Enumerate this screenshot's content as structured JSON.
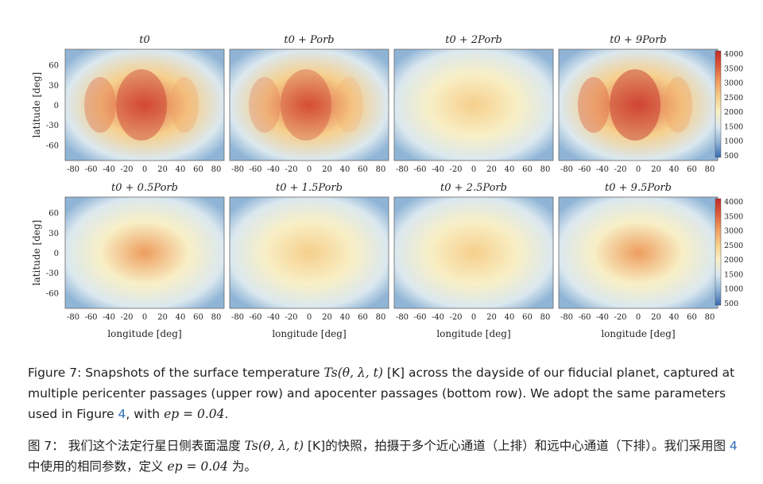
{
  "figure": {
    "panel_titles_top": [
      "t0",
      "t0 + Porb",
      "t0 + 2Porb",
      "t0 + 9Porb"
    ],
    "panel_titles_bottom": [
      "t0 + 0.5Porb",
      "t0 + 1.5Porb",
      "t0 + 2.5Porb",
      "t0 + 9.5Porb"
    ],
    "ylabel": "latitude [deg]",
    "xlabel": "longitude [deg]",
    "xticks": [
      "-80",
      "-60",
      "-40",
      "-20",
      "0",
      "20",
      "40",
      "60",
      "80"
    ],
    "yticks": [
      "60",
      "30",
      "0",
      "-30",
      "-60"
    ],
    "colorbar_ticks": [
      "4000",
      "3500",
      "3000",
      "2500",
      "2000",
      "1500",
      "1000",
      "500"
    ],
    "colormap": [
      "#3a6bb0",
      "#8fb4d6",
      "#dbe8ef",
      "#f8efc6",
      "#f6cf8c",
      "#ee9d5e",
      "#dd5b3a",
      "#c22a28"
    ],
    "panels": [
      {
        "row": 0,
        "col": 0,
        "intensity": 0.9
      },
      {
        "row": 0,
        "col": 1,
        "intensity": 0.8
      },
      {
        "row": 0,
        "col": 2,
        "intensity": 0.45
      },
      {
        "row": 0,
        "col": 3,
        "intensity": 0.95
      },
      {
        "row": 1,
        "col": 0,
        "intensity": 0.5
      },
      {
        "row": 1,
        "col": 1,
        "intensity": 0.45
      },
      {
        "row": 1,
        "col": 2,
        "intensity": 0.3
      },
      {
        "row": 1,
        "col": 3,
        "intensity": 0.55
      }
    ]
  },
  "caption_en": {
    "p1": "Figure 7: Snapshots of the surface temperature ",
    "p2": "Ts(θ, λ, t)",
    "p3": " [K] across the dayside of our fiducial planet, captured at multiple pericenter passages (upper row) and apocenter passages (bottom row). We adopt the same parameters used in Figure ",
    "ref": "4",
    "p4": ", with ",
    "p5": "ep = 0.04",
    "p6": "."
  },
  "caption_zh": {
    "p1": "图 7：  我们这个法定行星日侧表面温度 ",
    "p2": "Ts(θ, λ, t)",
    "p3": " [K]的快照，拍摄于多个近心通道（上排）和远中心通道（下排）。我们采用图 ",
    "ref": "4",
    "p4": " 中使用的相同参数，定义 ",
    "p5": "ep = 0.04",
    "p6": " 为。"
  }
}
